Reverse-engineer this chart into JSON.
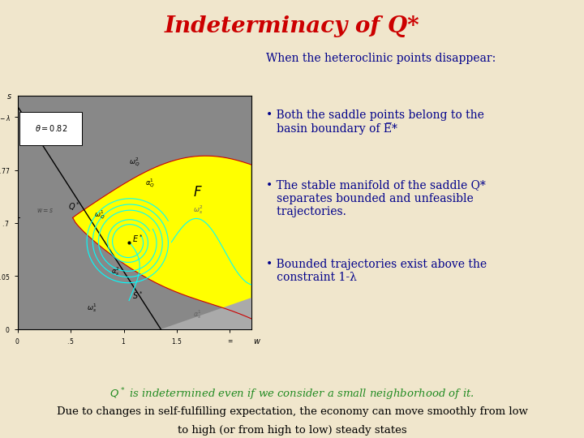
{
  "title": "Indeterminacy of Q*",
  "title_color": "#cc0000",
  "title_fontsize": 20,
  "background_color": "#f0e6cc",
  "text_color_blue": "#00008B",
  "text_color_green": "#228B22",
  "heading_text": "When the heteroclinic points disappear:",
  "bottom_line1": "Q* is indetermined even if we consider a small neighborhood of it.",
  "bottom_line2": "Due to changes in self-fulfilling expectation, the economy can move smoothly from low",
  "bottom_line3": "to high (or from high to low) steady states"
}
